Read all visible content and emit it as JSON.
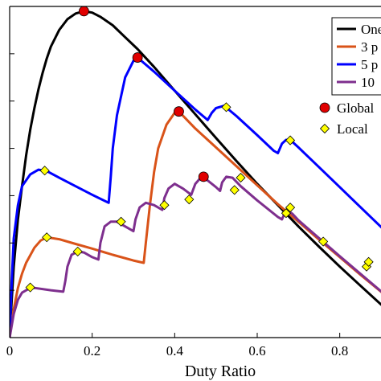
{
  "chart_data": {
    "type": "line",
    "xlabel": "Duty Ratio",
    "ylabel": "",
    "title": "",
    "xlim": [
      0,
      0.9
    ],
    "ylim": [
      0,
      7
    ],
    "xticks": [
      0,
      0.2,
      0.4,
      0.6,
      0.8
    ],
    "xtick_labels": [
      "0",
      "0.2",
      "0.4",
      "0.6",
      "0.8"
    ],
    "grid": false,
    "legend_position": "top-right",
    "series": [
      {
        "name": "One",
        "color": "#000000",
        "points": [
          [
            0,
            0
          ],
          [
            0.005,
            0.8
          ],
          [
            0.01,
            1.5
          ],
          [
            0.02,
            2.5
          ],
          [
            0.03,
            3.2
          ],
          [
            0.04,
            3.85
          ],
          [
            0.05,
            4.4
          ],
          [
            0.06,
            4.85
          ],
          [
            0.07,
            5.25
          ],
          [
            0.08,
            5.6
          ],
          [
            0.09,
            5.9
          ],
          [
            0.1,
            6.15
          ],
          [
            0.12,
            6.5
          ],
          [
            0.14,
            6.73
          ],
          [
            0.16,
            6.85
          ],
          [
            0.18,
            6.9
          ],
          [
            0.2,
            6.87
          ],
          [
            0.22,
            6.78
          ],
          [
            0.25,
            6.6
          ],
          [
            0.28,
            6.35
          ],
          [
            0.31,
            6.1
          ],
          [
            0.35,
            5.72
          ],
          [
            0.4,
            5.22
          ],
          [
            0.45,
            4.72
          ],
          [
            0.5,
            4.22
          ],
          [
            0.55,
            3.73
          ],
          [
            0.6,
            3.25
          ],
          [
            0.65,
            2.8
          ],
          [
            0.7,
            2.35
          ],
          [
            0.75,
            1.92
          ],
          [
            0.8,
            1.5
          ],
          [
            0.85,
            1.1
          ],
          [
            0.9,
            0.7
          ],
          [
            0.95,
            0.32
          ]
        ]
      },
      {
        "name": "3 p",
        "color": "#d95319",
        "points": [
          [
            0,
            0
          ],
          [
            0.01,
            0.6
          ],
          [
            0.02,
            1.05
          ],
          [
            0.03,
            1.35
          ],
          [
            0.04,
            1.58
          ],
          [
            0.06,
            1.9
          ],
          [
            0.075,
            2.05
          ],
          [
            0.09,
            2.12
          ],
          [
            0.12,
            2.08
          ],
          [
            0.16,
            1.98
          ],
          [
            0.2,
            1.88
          ],
          [
            0.25,
            1.75
          ],
          [
            0.3,
            1.63
          ],
          [
            0.325,
            1.58
          ],
          [
            0.33,
            2.0
          ],
          [
            0.34,
            2.8
          ],
          [
            0.35,
            3.5
          ],
          [
            0.36,
            4.0
          ],
          [
            0.38,
            4.5
          ],
          [
            0.4,
            4.75
          ],
          [
            0.41,
            4.78
          ],
          [
            0.45,
            4.42
          ],
          [
            0.5,
            4.02
          ],
          [
            0.55,
            3.62
          ],
          [
            0.6,
            3.22
          ],
          [
            0.65,
            2.82
          ],
          [
            0.7,
            2.45
          ],
          [
            0.75,
            2.07
          ],
          [
            0.8,
            1.7
          ],
          [
            0.85,
            1.33
          ],
          [
            0.9,
            0.97
          ],
          [
            0.95,
            0.62
          ]
        ]
      },
      {
        "name": "5 p",
        "color": "#0000ff",
        "points": [
          [
            0,
            0
          ],
          [
            0.005,
            1.2
          ],
          [
            0.01,
            2.1
          ],
          [
            0.02,
            2.8
          ],
          [
            0.03,
            3.2
          ],
          [
            0.05,
            3.45
          ],
          [
            0.07,
            3.55
          ],
          [
            0.09,
            3.52
          ],
          [
            0.12,
            3.38
          ],
          [
            0.16,
            3.2
          ],
          [
            0.2,
            3.02
          ],
          [
            0.24,
            2.85
          ],
          [
            0.245,
            3.4
          ],
          [
            0.25,
            4.0
          ],
          [
            0.26,
            4.7
          ],
          [
            0.28,
            5.5
          ],
          [
            0.3,
            5.85
          ],
          [
            0.31,
            5.92
          ],
          [
            0.35,
            5.62
          ],
          [
            0.4,
            5.22
          ],
          [
            0.45,
            4.82
          ],
          [
            0.48,
            4.6
          ],
          [
            0.49,
            4.75
          ],
          [
            0.5,
            4.85
          ],
          [
            0.52,
            4.9
          ],
          [
            0.55,
            4.68
          ],
          [
            0.6,
            4.28
          ],
          [
            0.64,
            3.95
          ],
          [
            0.65,
            3.9
          ],
          [
            0.66,
            4.1
          ],
          [
            0.67,
            4.18
          ],
          [
            0.68,
            4.18
          ],
          [
            0.7,
            4.02
          ],
          [
            0.75,
            3.6
          ],
          [
            0.8,
            3.18
          ],
          [
            0.85,
            2.76
          ],
          [
            0.9,
            2.34
          ],
          [
            0.95,
            1.92
          ]
        ]
      },
      {
        "name": "10",
        "color": "#7e2f8e",
        "points": [
          [
            0,
            0
          ],
          [
            0.01,
            0.5
          ],
          [
            0.02,
            0.8
          ],
          [
            0.03,
            0.95
          ],
          [
            0.05,
            1.05
          ],
          [
            0.06,
            1.05
          ],
          [
            0.1,
            1.0
          ],
          [
            0.13,
            0.97
          ],
          [
            0.135,
            1.2
          ],
          [
            0.14,
            1.5
          ],
          [
            0.15,
            1.75
          ],
          [
            0.165,
            1.82
          ],
          [
            0.18,
            1.8
          ],
          [
            0.2,
            1.7
          ],
          [
            0.215,
            1.65
          ],
          [
            0.22,
            2.0
          ],
          [
            0.23,
            2.35
          ],
          [
            0.245,
            2.45
          ],
          [
            0.26,
            2.45
          ],
          [
            0.28,
            2.35
          ],
          [
            0.3,
            2.25
          ],
          [
            0.305,
            2.5
          ],
          [
            0.315,
            2.75
          ],
          [
            0.33,
            2.85
          ],
          [
            0.35,
            2.8
          ],
          [
            0.37,
            2.7
          ],
          [
            0.375,
            2.95
          ],
          [
            0.385,
            3.15
          ],
          [
            0.4,
            3.25
          ],
          [
            0.42,
            3.15
          ],
          [
            0.44,
            3.02
          ],
          [
            0.45,
            3.25
          ],
          [
            0.465,
            3.4
          ],
          [
            0.48,
            3.32
          ],
          [
            0.5,
            3.18
          ],
          [
            0.51,
            3.1
          ],
          [
            0.515,
            3.28
          ],
          [
            0.525,
            3.4
          ],
          [
            0.54,
            3.38
          ],
          [
            0.56,
            3.2
          ],
          [
            0.6,
            2.9
          ],
          [
            0.65,
            2.55
          ],
          [
            0.66,
            2.5
          ],
          [
            0.665,
            2.6
          ],
          [
            0.675,
            2.68
          ],
          [
            0.685,
            2.62
          ],
          [
            0.7,
            2.48
          ],
          [
            0.75,
            2.1
          ],
          [
            0.8,
            1.72
          ],
          [
            0.85,
            1.35
          ],
          [
            0.9,
            0.98
          ],
          [
            0.95,
            0.62
          ]
        ]
      }
    ],
    "markers": [
      {
        "name": "Global",
        "shape": "circle",
        "color": "#e00000",
        "points": [
          [
            0.18,
            6.9
          ],
          [
            0.31,
            5.92
          ],
          [
            0.41,
            4.78
          ],
          [
            0.47,
            3.4
          ]
        ]
      },
      {
        "name": "Local",
        "shape": "diamond",
        "color": "#ffff00",
        "points": [
          [
            0.05,
            1.06
          ],
          [
            0.09,
            2.12
          ],
          [
            0.165,
            1.82
          ],
          [
            0.085,
            3.53
          ],
          [
            0.27,
            2.45
          ],
          [
            0.375,
            2.8
          ],
          [
            0.435,
            2.92
          ],
          [
            0.525,
            4.87
          ],
          [
            0.545,
            3.12
          ],
          [
            0.56,
            3.38
          ],
          [
            0.67,
            2.63
          ],
          [
            0.68,
            2.75
          ],
          [
            0.68,
            4.17
          ],
          [
            0.76,
            2.03
          ],
          [
            0.865,
            1.5
          ],
          [
            0.87,
            1.6
          ]
        ]
      }
    ],
    "legend_labels": [
      "One",
      "3 p",
      "5 p",
      "10",
      "Global",
      "Local"
    ]
  }
}
